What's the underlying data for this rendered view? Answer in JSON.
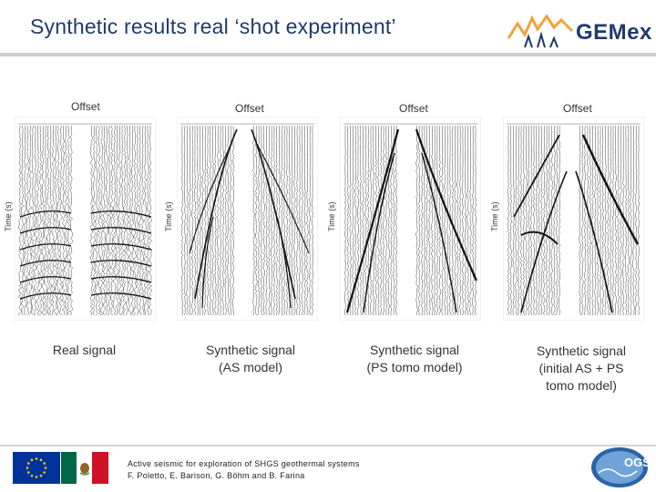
{
  "header": {
    "title": "Synthetic results real ‘shot experiment’",
    "logo_text": "GEMex",
    "logo_icon": "gemex-logo-icon"
  },
  "panels": [
    {
      "offset_label": "Offset",
      "y_label": "Time (s)",
      "caption": "Real signal",
      "style": "real"
    },
    {
      "offset_label": "Offset",
      "y_label": "Time (s)",
      "caption_lines": [
        "Synthetic signal",
        "(AS model)"
      ],
      "style": "as"
    },
    {
      "offset_label": "Offset",
      "y_label": "Time (s)",
      "caption_lines": [
        "Synthetic signal",
        "(PS tomo model)"
      ],
      "style": "ps"
    },
    {
      "offset_label": "Offset",
      "y_label": "Time (s)",
      "caption_lines": [
        "Synthetic signal",
        "(initial AS + PS",
        "tomo model)"
      ],
      "style": "init"
    }
  ],
  "footer": {
    "line1": "Active seismic for exploration of SHGS geothermal systems",
    "line2": "F. Poletto, E. Barison, G. Böhm and B. Farina",
    "logos": [
      "eu-flag-icon",
      "mexico-flag-icon",
      "ogs-logo-icon"
    ],
    "ogs_text": "OGS"
  },
  "colors": {
    "title": "#1f3b6b",
    "accent": "#f2a23c",
    "eu_blue": "#003399",
    "eu_star": "#ffcc00",
    "mx_green": "#006847",
    "mx_red": "#ce1126"
  }
}
